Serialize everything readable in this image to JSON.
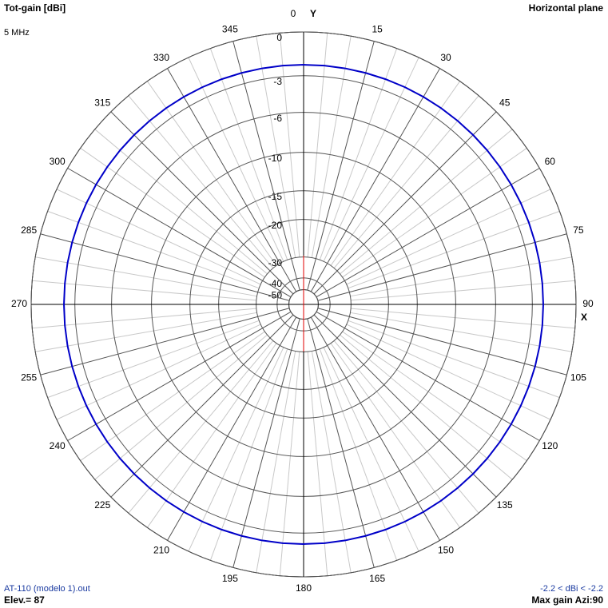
{
  "chart_data": {
    "type": "polar",
    "title": "Tot-gain [dBi]",
    "subtitle": "Horizontal plane",
    "frequency_label": "5 MHz",
    "file_label": "AT-110 (modelo 1).out",
    "elevation_label": "Elev.= 87",
    "range_label": "-2.2 < dBi < -2.2",
    "max_gain_label": "Max gain Azi:90",
    "x_axis_label": "X",
    "y_axis_label": "Y",
    "angle_ticks": [
      0,
      15,
      30,
      45,
      60,
      75,
      90,
      105,
      120,
      135,
      150,
      165,
      180,
      195,
      210,
      225,
      240,
      255,
      270,
      285,
      300,
      315,
      330,
      345
    ],
    "rlim": [
      -50,
      0
    ],
    "rticks": [
      0,
      -3,
      -6,
      -10,
      -15,
      -20,
      -30,
      -40,
      -50
    ],
    "series": [
      {
        "color": "#0000c8",
        "x": [
          0,
          5,
          10,
          15,
          20,
          25,
          30,
          35,
          40,
          45,
          50,
          55,
          60,
          65,
          70,
          75,
          80,
          85,
          90,
          95,
          100,
          105,
          110,
          115,
          120,
          125,
          130,
          135,
          140,
          145,
          150,
          155,
          160,
          165,
          170,
          175,
          180,
          185,
          190,
          195,
          200,
          205,
          210,
          215,
          220,
          225,
          230,
          235,
          240,
          245,
          250,
          255,
          260,
          265,
          270,
          275,
          280,
          285,
          290,
          295,
          300,
          305,
          310,
          315,
          320,
          325,
          330,
          335,
          340,
          345,
          350,
          355
        ],
        "values": [
          -2.2,
          -2.2,
          -2.2,
          -2.2,
          -2.2,
          -2.2,
          -2.2,
          -2.2,
          -2.2,
          -2.2,
          -2.2,
          -2.2,
          -2.2,
          -2.2,
          -2.2,
          -2.2,
          -2.2,
          -2.2,
          -2.2,
          -2.2,
          -2.2,
          -2.2,
          -2.2,
          -2.2,
          -2.2,
          -2.2,
          -2.2,
          -2.2,
          -2.2,
          -2.2,
          -2.2,
          -2.2,
          -2.2,
          -2.2,
          -2.2,
          -2.2,
          -2.2,
          -2.2,
          -2.2,
          -2.2,
          -2.2,
          -2.2,
          -2.2,
          -2.2,
          -2.2,
          -2.2,
          -2.2,
          -2.2,
          -2.2,
          -2.2,
          -2.2,
          -2.2,
          -2.2,
          -2.2,
          -2.2,
          -2.2,
          -2.2,
          -2.2,
          -2.2,
          -2.2,
          -2.2,
          -2.2,
          -2.2,
          -2.2,
          -2.2,
          -2.2,
          -2.2,
          -2.2,
          -2.2,
          -2.2,
          -2.2,
          -2.2
        ]
      }
    ]
  }
}
